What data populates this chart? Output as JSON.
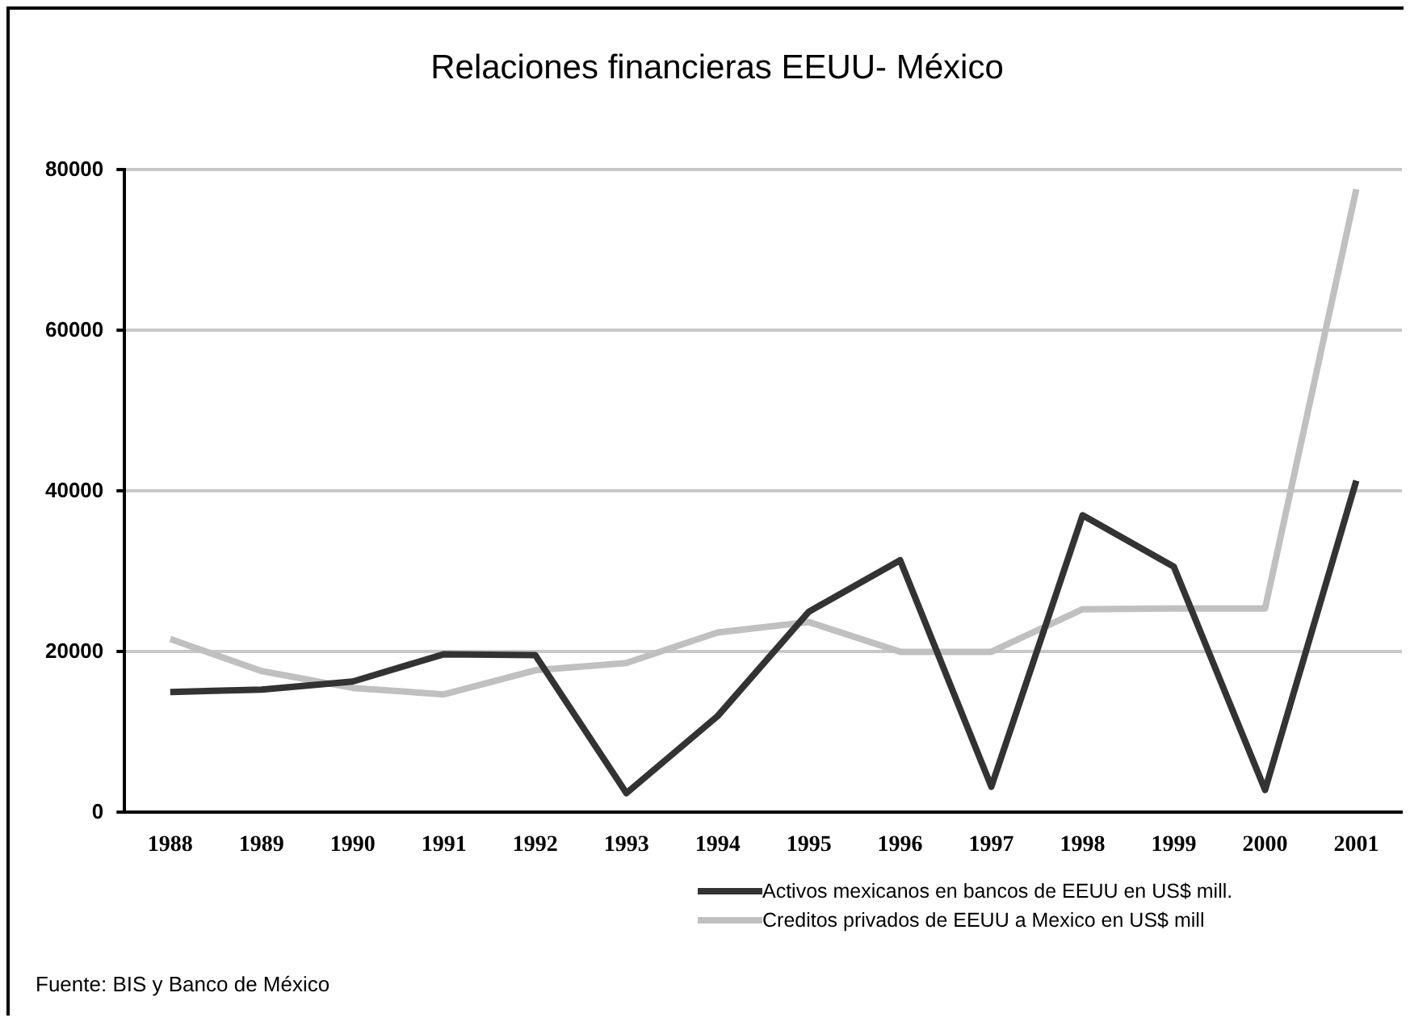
{
  "chart_data": {
    "type": "line",
    "title": "Relaciones financieras EEUU- México",
    "categories": [
      "1988",
      "1989",
      "1990",
      "1991",
      "1992",
      "1993",
      "1994",
      "1995",
      "1996",
      "1997",
      "1998",
      "1999",
      "2000",
      "2001"
    ],
    "series": [
      {
        "name": "Activos mexicanos en bancos de EEUU en US$ mill.",
        "color": "#333333",
        "values": [
          15000,
          15300,
          16300,
          19700,
          19600,
          2400,
          12000,
          25000,
          31400,
          3200,
          37000,
          30600,
          2800,
          41300
        ]
      },
      {
        "name": "Creditos privados de EEUU a Mexico en US$ mill",
        "color": "#c0c0c0",
        "values": [
          21600,
          17600,
          15500,
          14700,
          17700,
          18600,
          22400,
          23700,
          20000,
          20000,
          25300,
          25400,
          25400,
          77600
        ]
      }
    ],
    "ylim": [
      0,
      80000
    ],
    "yticks": [
      0,
      20000,
      40000,
      60000,
      80000
    ],
    "grid": "y",
    "legend": "bottom",
    "marker": "none",
    "line_style": "solid",
    "annotations": [
      "Fuente: BIS y Banco de México"
    ]
  }
}
